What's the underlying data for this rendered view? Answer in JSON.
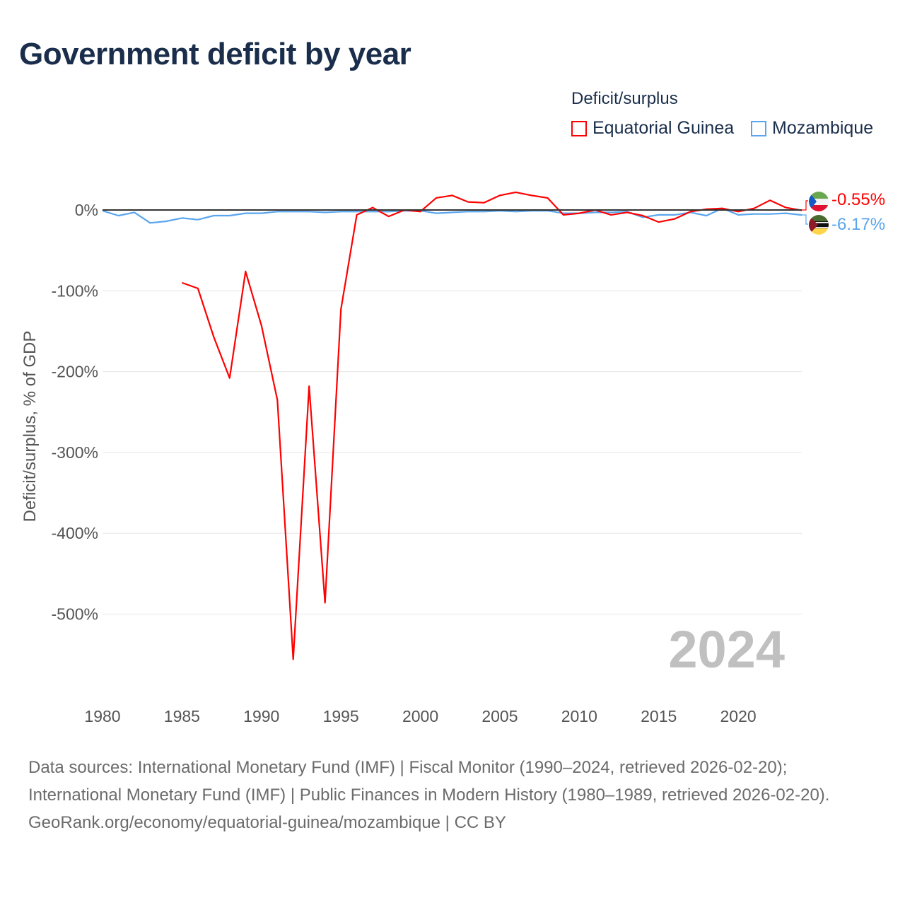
{
  "title": "Government deficit by year",
  "legend": {
    "title": "Deficit/surplus",
    "items": [
      {
        "name": "Equatorial Guinea",
        "color": "#ff0000"
      },
      {
        "name": "Mozambique",
        "color": "#5aa5ee"
      }
    ]
  },
  "watermark_year": "2024",
  "end_labels": {
    "eq": "-0.55%",
    "mz": "-6.17%"
  },
  "source": {
    "line1": "Data sources: International Monetary Fund (IMF) | Fiscal Monitor (1990–2024, retrieved 2026-02-20); International Monetary Fund (IMF) | Public Finances in Modern History (1980–1989, retrieved 2026-02-20).",
    "line2": "GeoRank.org/economy/equatorial-guinea/mozambique | CC BY"
  },
  "chart_data": {
    "type": "line",
    "title": "Government deficit by year",
    "xlabel": "",
    "ylabel": "Deficit/surplus, % of GDP",
    "xlim": [
      1980,
      2024
    ],
    "ylim": [
      -600,
      30
    ],
    "xticks": [
      1980,
      1985,
      1990,
      1995,
      2000,
      2005,
      2010,
      2015,
      2020
    ],
    "yticks": [
      0,
      -100,
      -200,
      -300,
      -400,
      -500
    ],
    "ytick_labels": [
      "0%",
      "-100%",
      "-200%",
      "-300%",
      "-400%",
      "-500%"
    ],
    "grid": true,
    "legend_position": "top-right",
    "series": [
      {
        "name": "Equatorial Guinea",
        "color": "#ff0000",
        "x_start": 1985,
        "values": [
          -90,
          -97,
          -157,
          -208,
          -76,
          -143,
          -235,
          -556,
          -218,
          -486,
          -123,
          -6,
          3,
          -8,
          0,
          -2,
          15,
          18,
          10,
          9,
          18,
          22,
          18,
          15,
          -6,
          -4,
          0,
          -6,
          -3,
          -7,
          -15,
          -11,
          -2,
          1,
          2,
          -2,
          2,
          12,
          3,
          -0.55
        ]
      },
      {
        "name": "Mozambique",
        "color": "#5aa5ee",
        "x_start": 1980,
        "values": [
          -1,
          -7,
          -3,
          -16,
          -14,
          -10,
          -12,
          -7,
          -7,
          -4,
          -4,
          -2,
          -2,
          -2,
          -3,
          -2,
          -2,
          -2,
          -2,
          -1,
          -1,
          -4,
          -3,
          -2,
          -2,
          -1,
          -2,
          -1,
          -1,
          -4,
          -4,
          -3,
          -3,
          -2,
          -9,
          -6,
          -6,
          -3,
          -7,
          2,
          -6,
          -5,
          -5,
          -4,
          -6.17
        ]
      }
    ]
  }
}
